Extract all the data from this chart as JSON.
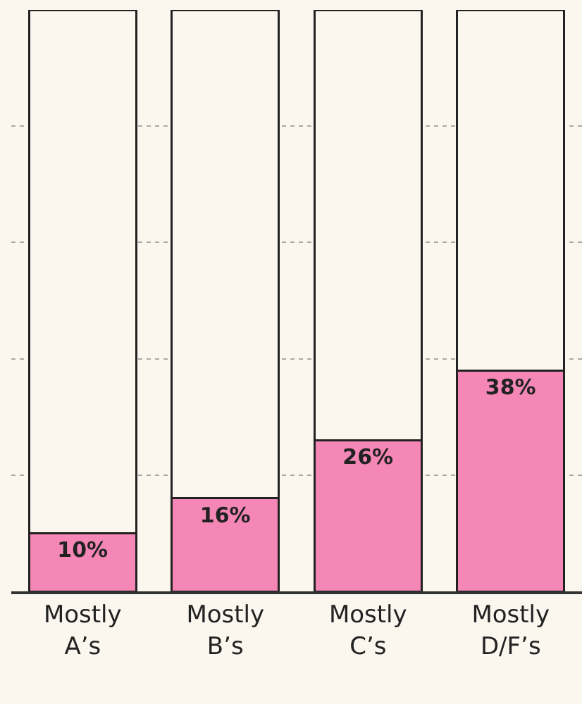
{
  "chart_data": {
    "type": "bar",
    "stacked": true,
    "categories": [
      "Mostly A’s",
      "Mostly B’s",
      "Mostly C’s",
      "Mostly D/F’s"
    ],
    "series": [
      {
        "color": "#f487b6",
        "values": [
          10,
          16,
          26,
          38
        ],
        "value_labels": [
          "10%",
          "16%",
          "26%",
          "38%"
        ]
      },
      {
        "color": "#fbf6ee",
        "values": [
          90,
          84,
          74,
          62
        ]
      }
    ],
    "ylim": [
      0,
      100
    ],
    "yticks": [
      {
        "value": 0,
        "label": null
      },
      {
        "value": 20,
        "label": null
      },
      {
        "value": 40,
        "label": null
      },
      {
        "value": 60,
        "label": null
      },
      {
        "value": 80,
        "label": null
      }
    ],
    "grid": "y",
    "tick_labels": "x"
  }
}
